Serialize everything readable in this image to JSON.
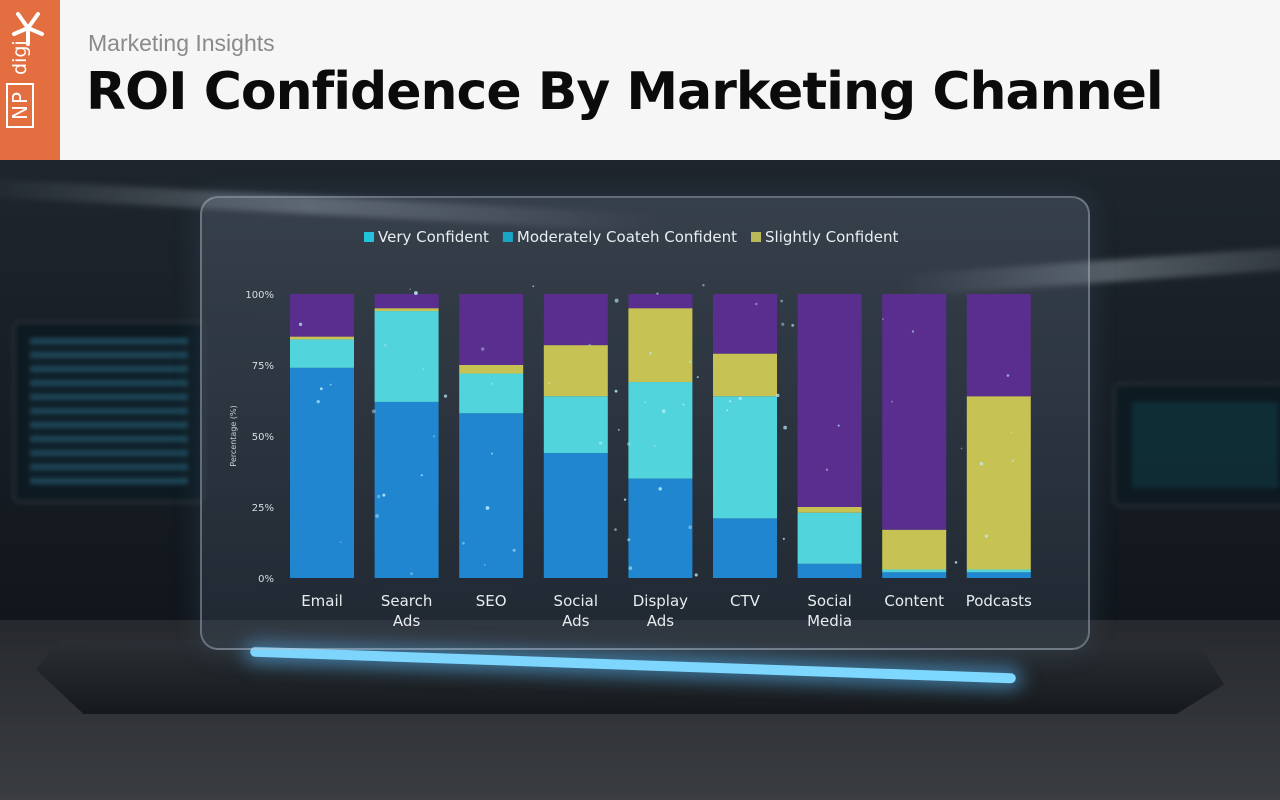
{
  "header": {
    "subtitle": "Marketing Insights",
    "title": "ROI Confidence By Marketing Channel",
    "logo_np": "NP",
    "logo_digi": "digi",
    "logo_color": "#e36f40"
  },
  "chart_data": {
    "type": "bar",
    "stacked": true,
    "ylabel": "Percentage (%)",
    "ylim": [
      0,
      100
    ],
    "ytick_labels": [
      "100%",
      "75%",
      "50%",
      "25%",
      "0%"
    ],
    "legend_placement": "top-center",
    "categories": [
      [
        "Email"
      ],
      [
        "Search",
        "Ads"
      ],
      [
        "SEO"
      ],
      [
        "Social",
        "Ads"
      ],
      [
        "Display",
        "Ads"
      ],
      [
        "CTV"
      ],
      [
        "Social",
        "Media"
      ],
      [
        "Content"
      ],
      [
        "Podcasts"
      ]
    ],
    "legend": [
      {
        "label": "Very Confident",
        "color": "#22c3dd"
      },
      {
        "label": "Moderately Coateh Confident",
        "color": "#1aa5c8"
      },
      {
        "label": "Slightly Confident",
        "color": "#b9b95a"
      }
    ],
    "series": [
      {
        "name": "Very Confident",
        "color": "#1f86cf",
        "values": [
          74,
          62,
          58,
          44,
          35,
          21,
          5,
          2,
          2
        ]
      },
      {
        "name": "Moderately Coateh Confident",
        "color": "#52d4dc",
        "values": [
          10,
          32,
          14,
          20,
          34,
          43,
          18,
          1,
          1
        ]
      },
      {
        "name": "Slightly Confident",
        "color": "#c6c253",
        "values": [
          1,
          1,
          3,
          18,
          26,
          15,
          2,
          14,
          61
        ]
      },
      {
        "name": "",
        "color": "#5a2e8e",
        "values": [
          15,
          5,
          25,
          18,
          5,
          21,
          75,
          83,
          36
        ]
      }
    ]
  }
}
